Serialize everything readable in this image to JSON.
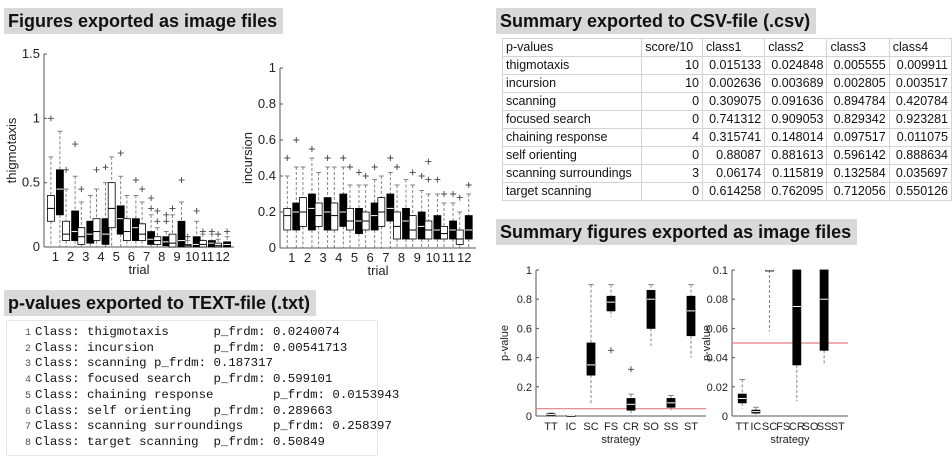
{
  "headings": {
    "figures_exported": "Figures exported as image files",
    "csv_exported": "Summary exported to CSV-file (.csv)",
    "pvalues_text": "p-values exported to TEXT-file (.txt)",
    "summary_figures": "Summary figures exported as image files"
  },
  "csv": {
    "header": [
      "p-values",
      "score/10",
      "class1",
      "class2",
      "class3",
      "class4"
    ],
    "rows": [
      [
        "thigmotaxis",
        "10",
        "0.015133",
        "0.024848",
        "0.005555",
        "0.009911"
      ],
      [
        "incursion",
        "10",
        "0.002636",
        "0.003689",
        "0.002805",
        "0.003517"
      ],
      [
        "scanning",
        "0",
        "0.309075",
        "0.091636",
        "0.894784",
        "0.420784"
      ],
      [
        "focused search",
        "0",
        "0.741312",
        "0.909053",
        "0.829342",
        "0.923281"
      ],
      [
        "chaining response",
        "4",
        "0.315741",
        "0.148014",
        "0.097517",
        "0.011075"
      ],
      [
        "self orienting",
        "0",
        "0.88087",
        "0.881613",
        "0.596142",
        "0.888634"
      ],
      [
        "scanning surroundings",
        "3",
        "0.06174",
        "0.115819",
        "0.132584",
        "0.035697"
      ],
      [
        "target scanning",
        "0",
        "0.614258",
        "0.762095",
        "0.712056",
        "0.550126"
      ]
    ]
  },
  "text_lines": [
    {
      "n": "1",
      "text": "Class: thigmotaxis      p_frdm: 0.0240074"
    },
    {
      "n": "2",
      "text": "Class: incursion        p_frdm: 0.00541713"
    },
    {
      "n": "3",
      "text": "Class: scanning p_frdm: 0.187317"
    },
    {
      "n": "4",
      "text": "Class: focused search   p_frdm: 0.599101"
    },
    {
      "n": "5",
      "text": "Class: chaining response        p_frdm: 0.0153943"
    },
    {
      "n": "6",
      "text": "Class: self orienting   p_frdm: 0.289663"
    },
    {
      "n": "7",
      "text": "Class: scanning surroundings    p_frdm: 0.258397"
    },
    {
      "n": "8",
      "text": "Class: target scanning  p_frdm: 0.50849"
    }
  ],
  "chart_data": [
    {
      "type": "boxplot",
      "title": "",
      "xlabel": "trial",
      "ylabel": "thigmotaxis",
      "ylim": [
        0,
        1.5
      ],
      "yticks": [
        "0",
        "0.5",
        "1",
        "1.5"
      ],
      "xticks": [
        "1",
        "2",
        "3",
        "4",
        "5",
        "6",
        "7",
        "8",
        "9",
        "10",
        "11",
        "12"
      ],
      "grid": false,
      "series": [
        {
          "group": "1",
          "q1": 0.2,
          "median": 0.3,
          "q3": 0.4,
          "whisker_low": 0.0,
          "whisker_high": 0.7,
          "outliers": [
            1.0
          ],
          "fill": "white"
        },
        {
          "group": "1",
          "q1": 0.25,
          "median": 0.45,
          "q3": 0.6,
          "whisker_low": 0.0,
          "whisker_high": 0.9,
          "outliers": [],
          "fill": "black"
        },
        {
          "group": "2",
          "q1": 0.05,
          "median": 0.1,
          "q3": 0.2,
          "whisker_low": 0.0,
          "whisker_high": 0.45,
          "outliers": [
            0.6
          ],
          "fill": "white"
        },
        {
          "group": "2",
          "q1": 0.05,
          "median": 0.12,
          "q3": 0.28,
          "whisker_low": 0.0,
          "whisker_high": 0.55,
          "outliers": [
            0.8
          ],
          "fill": "black"
        },
        {
          "group": "3",
          "q1": 0.02,
          "median": 0.08,
          "q3": 0.15,
          "whisker_low": 0.0,
          "whisker_high": 0.35,
          "outliers": [
            0.45
          ],
          "fill": "white"
        },
        {
          "group": "3",
          "q1": 0.03,
          "median": 0.1,
          "q3": 0.2,
          "whisker_low": 0.0,
          "whisker_high": 0.4,
          "outliers": [],
          "fill": "black"
        },
        {
          "group": "4",
          "q1": 0.05,
          "median": 0.12,
          "q3": 0.22,
          "whisker_low": 0.0,
          "whisker_high": 0.45,
          "outliers": [
            0.6
          ],
          "fill": "white"
        },
        {
          "group": "4",
          "q1": 0.02,
          "median": 0.1,
          "q3": 0.22,
          "whisker_low": 0.0,
          "whisker_high": 0.5,
          "outliers": [
            0.62
          ],
          "fill": "black"
        },
        {
          "group": "5",
          "q1": 0.15,
          "median": 0.3,
          "q3": 0.5,
          "whisker_low": 0.0,
          "whisker_high": 0.7,
          "outliers": [],
          "fill": "white"
        },
        {
          "group": "5",
          "q1": 0.1,
          "median": 0.22,
          "q3": 0.32,
          "whisker_low": 0.0,
          "whisker_high": 0.55,
          "outliers": [
            0.73
          ],
          "fill": "black"
        },
        {
          "group": "6",
          "q1": 0.05,
          "median": 0.12,
          "q3": 0.22,
          "whisker_low": 0.0,
          "whisker_high": 0.4,
          "outliers": [],
          "fill": "white"
        },
        {
          "group": "6",
          "q1": 0.05,
          "median": 0.15,
          "q3": 0.22,
          "whisker_low": 0.0,
          "whisker_high": 0.4,
          "outliers": [
            0.52
          ],
          "fill": "black"
        },
        {
          "group": "7",
          "q1": 0.05,
          "median": 0.1,
          "q3": 0.18,
          "whisker_low": 0.0,
          "whisker_high": 0.35,
          "outliers": [
            0.45
          ],
          "fill": "white"
        },
        {
          "group": "7",
          "q1": 0.02,
          "median": 0.06,
          "q3": 0.12,
          "whisker_low": 0.0,
          "whisker_high": 0.25,
          "outliers": [
            0.3,
            0.38
          ],
          "fill": "black"
        },
        {
          "group": "8",
          "q1": 0.02,
          "median": 0.05,
          "q3": 0.08,
          "whisker_low": 0.0,
          "whisker_high": 0.15,
          "outliers": [
            0.2,
            0.28
          ],
          "fill": "white"
        },
        {
          "group": "8",
          "q1": 0.01,
          "median": 0.04,
          "q3": 0.08,
          "whisker_low": 0.0,
          "whisker_high": 0.12,
          "outliers": [
            0.2,
            0.25
          ],
          "fill": "black"
        },
        {
          "group": "9",
          "q1": 0.0,
          "median": 0.03,
          "q3": 0.1,
          "whisker_low": 0.0,
          "whisker_high": 0.25,
          "outliers": [
            0.3
          ],
          "fill": "white"
        },
        {
          "group": "9",
          "q1": 0.0,
          "median": 0.05,
          "q3": 0.2,
          "whisker_low": 0.0,
          "whisker_high": 0.35,
          "outliers": [
            0.52
          ],
          "fill": "black"
        },
        {
          "group": "10",
          "q1": 0.0,
          "median": 0.01,
          "q3": 0.02,
          "whisker_low": 0.0,
          "whisker_high": 0.05,
          "outliers": [
            0.08
          ],
          "fill": "white"
        },
        {
          "group": "10",
          "q1": 0.0,
          "median": 0.02,
          "q3": 0.08,
          "whisker_low": 0.0,
          "whisker_high": 0.2,
          "outliers": [
            0.28
          ],
          "fill": "black"
        },
        {
          "group": "11",
          "q1": 0.0,
          "median": 0.02,
          "q3": 0.05,
          "whisker_low": 0.0,
          "whisker_high": 0.1,
          "outliers": [
            0.12
          ],
          "fill": "white"
        },
        {
          "group": "11",
          "q1": 0.0,
          "median": 0.03,
          "q3": 0.05,
          "whisker_low": 0.0,
          "whisker_high": 0.1,
          "outliers": [
            0.12
          ],
          "fill": "black"
        },
        {
          "group": "12",
          "q1": 0.0,
          "median": 0.01,
          "q3": 0.03,
          "whisker_low": 0.0,
          "whisker_high": 0.06,
          "outliers": [
            0.1
          ],
          "fill": "white"
        },
        {
          "group": "12",
          "q1": 0.0,
          "median": 0.02,
          "q3": 0.04,
          "whisker_low": 0.0,
          "whisker_high": 0.08,
          "outliers": [
            0.12
          ],
          "fill": "black"
        }
      ]
    },
    {
      "type": "boxplot",
      "title": "",
      "xlabel": "trial",
      "ylabel": "incursion",
      "ylim": [
        0,
        1.0
      ],
      "yticks": [
        "0",
        "0.2",
        "0.4",
        "0.6",
        "0.8",
        "1"
      ],
      "xticks": [
        "1",
        "2",
        "3",
        "4",
        "5",
        "6",
        "7",
        "8",
        "9",
        "10",
        "11",
        "12"
      ],
      "grid": false,
      "series": [
        {
          "group": "1",
          "q1": 0.1,
          "median": 0.18,
          "q3": 0.22,
          "whisker_low": 0.0,
          "whisker_high": 0.4,
          "outliers": [
            0.5
          ],
          "fill": "white"
        },
        {
          "group": "1",
          "q1": 0.1,
          "median": 0.2,
          "q3": 0.25,
          "whisker_low": 0.0,
          "whisker_high": 0.45,
          "outliers": [
            0.6
          ],
          "fill": "black"
        },
        {
          "group": "2",
          "q1": 0.12,
          "median": 0.2,
          "q3": 0.28,
          "whisker_low": 0.0,
          "whisker_high": 0.45,
          "outliers": [],
          "fill": "white"
        },
        {
          "group": "2",
          "q1": 0.1,
          "median": 0.22,
          "q3": 0.3,
          "whisker_low": 0.0,
          "whisker_high": 0.5,
          "outliers": [
            0.55
          ],
          "fill": "black"
        },
        {
          "group": "3",
          "q1": 0.12,
          "median": 0.18,
          "q3": 0.25,
          "whisker_low": 0.0,
          "whisker_high": 0.42,
          "outliers": [],
          "fill": "white"
        },
        {
          "group": "3",
          "q1": 0.1,
          "median": 0.2,
          "q3": 0.28,
          "whisker_low": 0.0,
          "whisker_high": 0.45,
          "outliers": [
            0.5
          ],
          "fill": "black"
        },
        {
          "group": "4",
          "q1": 0.1,
          "median": 0.18,
          "q3": 0.25,
          "whisker_low": 0.0,
          "whisker_high": 0.45,
          "outliers": [],
          "fill": "white"
        },
        {
          "group": "4",
          "q1": 0.12,
          "median": 0.2,
          "q3": 0.3,
          "whisker_low": 0.0,
          "whisker_high": 0.45,
          "outliers": [
            0.5
          ],
          "fill": "black"
        },
        {
          "group": "5",
          "q1": 0.1,
          "median": 0.15,
          "q3": 0.22,
          "whisker_low": 0.0,
          "whisker_high": 0.35,
          "outliers": [
            0.45
          ],
          "fill": "white"
        },
        {
          "group": "5",
          "q1": 0.08,
          "median": 0.15,
          "q3": 0.22,
          "whisker_low": 0.0,
          "whisker_high": 0.35,
          "outliers": [
            0.42
          ],
          "fill": "black"
        },
        {
          "group": "6",
          "q1": 0.1,
          "median": 0.15,
          "q3": 0.2,
          "whisker_low": 0.0,
          "whisker_high": 0.35,
          "outliers": [
            0.4
          ],
          "fill": "white"
        },
        {
          "group": "6",
          "q1": 0.1,
          "median": 0.18,
          "q3": 0.25,
          "whisker_low": 0.0,
          "whisker_high": 0.38,
          "outliers": [
            0.45
          ],
          "fill": "black"
        },
        {
          "group": "7",
          "q1": 0.12,
          "median": 0.2,
          "q3": 0.28,
          "whisker_low": 0.0,
          "whisker_high": 0.4,
          "outliers": [],
          "fill": "white"
        },
        {
          "group": "7",
          "q1": 0.15,
          "median": 0.22,
          "q3": 0.3,
          "whisker_low": 0.0,
          "whisker_high": 0.42,
          "outliers": [
            0.5
          ],
          "fill": "black"
        },
        {
          "group": "8",
          "q1": 0.05,
          "median": 0.12,
          "q3": 0.2,
          "whisker_low": 0.0,
          "whisker_high": 0.35,
          "outliers": [
            0.45
          ],
          "fill": "white"
        },
        {
          "group": "8",
          "q1": 0.05,
          "median": 0.15,
          "q3": 0.22,
          "whisker_low": 0.0,
          "whisker_high": 0.38,
          "outliers": [],
          "fill": "black"
        },
        {
          "group": "9",
          "q1": 0.05,
          "median": 0.1,
          "q3": 0.18,
          "whisker_low": 0.0,
          "whisker_high": 0.35,
          "outliers": [
            0.42
          ],
          "fill": "white"
        },
        {
          "group": "9",
          "q1": 0.05,
          "median": 0.12,
          "q3": 0.2,
          "whisker_low": 0.0,
          "whisker_high": 0.32,
          "outliers": [
            0.4
          ],
          "fill": "black"
        },
        {
          "group": "10",
          "q1": 0.05,
          "median": 0.1,
          "q3": 0.15,
          "whisker_low": 0.0,
          "whisker_high": 0.3,
          "outliers": [
            0.38,
            0.48
          ],
          "fill": "white"
        },
        {
          "group": "10",
          "q1": 0.05,
          "median": 0.1,
          "q3": 0.18,
          "whisker_low": 0.0,
          "whisker_high": 0.3,
          "outliers": [
            0.38
          ],
          "fill": "black"
        },
        {
          "group": "11",
          "q1": 0.05,
          "median": 0.08,
          "q3": 0.12,
          "whisker_low": 0.0,
          "whisker_high": 0.25,
          "outliers": [
            0.3
          ],
          "fill": "white"
        },
        {
          "group": "11",
          "q1": 0.05,
          "median": 0.1,
          "q3": 0.15,
          "whisker_low": 0.0,
          "whisker_high": 0.25,
          "outliers": [
            0.3
          ],
          "fill": "black"
        },
        {
          "group": "12",
          "q1": 0.02,
          "median": 0.05,
          "q3": 0.1,
          "whisker_low": 0.0,
          "whisker_high": 0.2,
          "outliers": [
            0.28
          ],
          "fill": "white"
        },
        {
          "group": "12",
          "q1": 0.05,
          "median": 0.1,
          "q3": 0.18,
          "whisker_low": 0.0,
          "whisker_high": 0.3,
          "outliers": [
            0.35
          ],
          "fill": "black"
        }
      ]
    },
    {
      "type": "boxplot",
      "title": "",
      "xlabel": "strategy",
      "ylabel": "p-value",
      "ylim": [
        0,
        1.0
      ],
      "yticks": [
        "0",
        "0.2",
        "0.4",
        "0.6",
        "0.8",
        "1"
      ],
      "xticks": [
        "TT",
        "IC",
        "SC",
        "FS",
        "CR",
        "SO",
        "SS",
        "ST"
      ],
      "reference_line": {
        "y": 0.05,
        "color": "#e08080"
      },
      "grid": false,
      "series": [
        {
          "group": "TT",
          "q1": 0.005,
          "median": 0.01,
          "q3": 0.015,
          "whisker_low": 0.0,
          "whisker_high": 0.02,
          "outliers": [],
          "fill": "black"
        },
        {
          "group": "IC",
          "q1": 0.002,
          "median": 0.003,
          "q3": 0.004,
          "whisker_low": 0.0,
          "whisker_high": 0.005,
          "outliers": [],
          "fill": "black"
        },
        {
          "group": "SC",
          "q1": 0.28,
          "median": 0.35,
          "q3": 0.5,
          "whisker_low": 0.08,
          "whisker_high": 0.9,
          "outliers": [],
          "fill": "black"
        },
        {
          "group": "FS",
          "q1": 0.72,
          "median": 0.78,
          "q3": 0.82,
          "whisker_low": 0.68,
          "whisker_high": 0.9,
          "outliers": [
            0.45
          ],
          "fill": "black"
        },
        {
          "group": "CR",
          "q1": 0.04,
          "median": 0.08,
          "q3": 0.12,
          "whisker_low": 0.01,
          "whisker_high": 0.15,
          "outliers": [
            0.32
          ],
          "fill": "black"
        },
        {
          "group": "SO",
          "q1": 0.6,
          "median": 0.8,
          "q3": 0.86,
          "whisker_low": 0.48,
          "whisker_high": 0.9,
          "outliers": [],
          "fill": "black"
        },
        {
          "group": "SS",
          "q1": 0.06,
          "median": 0.09,
          "q3": 0.12,
          "whisker_low": 0.03,
          "whisker_high": 0.14,
          "outliers": [],
          "fill": "black"
        },
        {
          "group": "ST",
          "q1": 0.55,
          "median": 0.72,
          "q3": 0.82,
          "whisker_low": 0.4,
          "whisker_high": 0.9,
          "outliers": [],
          "fill": "black"
        }
      ]
    },
    {
      "type": "boxplot",
      "title": "",
      "xlabel": "strategy",
      "ylabel": "p-value",
      "ylim": [
        0,
        0.1
      ],
      "yticks": [
        "0",
        "0.02",
        "0.04",
        "0.06",
        "0.08",
        "0.1"
      ],
      "xticks": [
        "TT",
        "IC",
        "SC",
        "FS",
        "CR",
        "SO",
        "SS",
        "ST"
      ],
      "reference_line": {
        "y": 0.05,
        "color": "#e08080"
      },
      "grid": false,
      "series": [
        {
          "group": "TT",
          "q1": 0.009,
          "median": 0.012,
          "q3": 0.015,
          "whisker_low": 0.005,
          "whisker_high": 0.025,
          "outliers": [],
          "fill": "black"
        },
        {
          "group": "IC",
          "q1": 0.002,
          "median": 0.003,
          "q3": 0.004,
          "whisker_low": 0.001,
          "whisker_high": 0.006,
          "outliers": [],
          "fill": "black"
        },
        {
          "group": "SC",
          "q1": 0.1,
          "median": 0.1,
          "q3": 0.1,
          "whisker_low": 0.058,
          "whisker_high": 0.1,
          "outliers": [],
          "fill": "black"
        },
        {
          "group": "CR",
          "q1": 0.035,
          "median": 0.075,
          "q3": 0.1,
          "whisker_low": 0.01,
          "whisker_high": 0.1,
          "outliers": [],
          "fill": "black"
        },
        {
          "group": "SS",
          "q1": 0.045,
          "median": 0.08,
          "q3": 0.1,
          "whisker_low": 0.035,
          "whisker_high": 0.1,
          "outliers": [],
          "fill": "black"
        }
      ]
    }
  ]
}
